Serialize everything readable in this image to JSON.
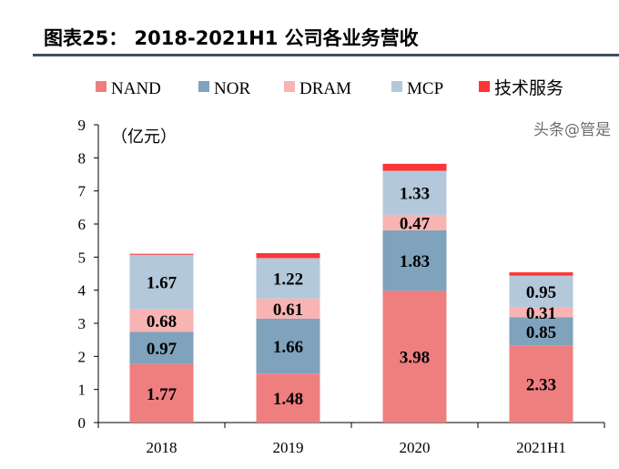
{
  "title": "图表25：  2018-2021H1 公司各业务营收",
  "watermark": "头条@管是",
  "chart_data": {
    "type": "bar",
    "stacked": true,
    "categories": [
      "2018",
      "2019",
      "2020",
      "2021H1"
    ],
    "unit_label": "（亿元）",
    "ylim": [
      0,
      9
    ],
    "yticks": [
      0,
      1,
      2,
      3,
      4,
      5,
      6,
      7,
      8,
      9
    ],
    "grid": false,
    "legend_position": "top",
    "series": [
      {
        "name": "NAND",
        "color": "#EF7F7F",
        "values": [
          1.77,
          1.48,
          3.98,
          2.33
        ],
        "labels": [
          "1.77",
          "1.48",
          "3.98",
          "2.33"
        ]
      },
      {
        "name": "NOR",
        "color": "#7FA2BD",
        "values": [
          0.97,
          1.66,
          1.83,
          0.85
        ],
        "labels": [
          "0.97",
          "1.66",
          "1.83",
          "0.85"
        ]
      },
      {
        "name": "DRAM",
        "color": "#F8B3B3",
        "values": [
          0.68,
          0.61,
          0.47,
          0.31
        ],
        "labels": [
          "0.68",
          "0.61",
          "0.47",
          "0.31"
        ]
      },
      {
        "name": "MCP",
        "color": "#B3C8DA",
        "values": [
          1.67,
          1.22,
          1.33,
          0.95
        ],
        "labels": [
          "1.67",
          "1.22",
          "1.33",
          "0.95"
        ]
      },
      {
        "name": "技术服务",
        "color": "#FF3535",
        "values": [
          0.01,
          0.15,
          0.21,
          0.1
        ],
        "labels": []
      }
    ]
  }
}
